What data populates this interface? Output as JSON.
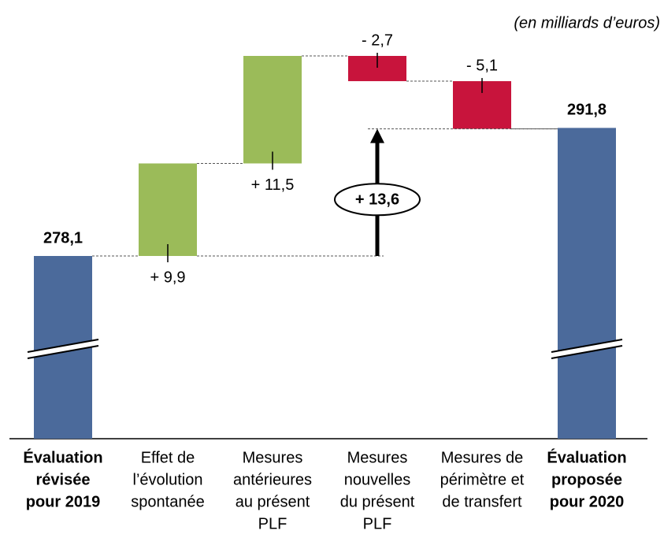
{
  "chart_data": {
    "type": "waterfall",
    "subtitle": "(en milliards d’euros)",
    "categories": [
      [
        "Évaluation",
        "révisée",
        "pour 2019"
      ],
      [
        "Effet de",
        "l’évolution",
        "spontanée"
      ],
      [
        "Mesures",
        "antérieures",
        "au présent",
        "PLF"
      ],
      [
        "Mesures",
        "nouvelles",
        "du présent",
        "PLF"
      ],
      [
        "Mesures de",
        "périmètre et",
        "de transfert"
      ],
      [
        "Évaluation",
        "proposée",
        "pour 2020"
      ]
    ],
    "measure": [
      "total",
      "relative",
      "relative",
      "relative",
      "relative",
      "total"
    ],
    "values": [
      278.1,
      9.9,
      11.5,
      -2.7,
      -5.1,
      291.8
    ],
    "value_labels": [
      "278,1",
      "+ 9,9",
      "+ 11,5",
      "- 2,7",
      "- 5,1",
      "291,8"
    ],
    "colors": {
      "total": "#4b6a9b",
      "increase": "#9bbb59",
      "decrease": "#c8143c"
    },
    "annotation": {
      "value": 13.6,
      "label": "+ 13,6"
    }
  }
}
